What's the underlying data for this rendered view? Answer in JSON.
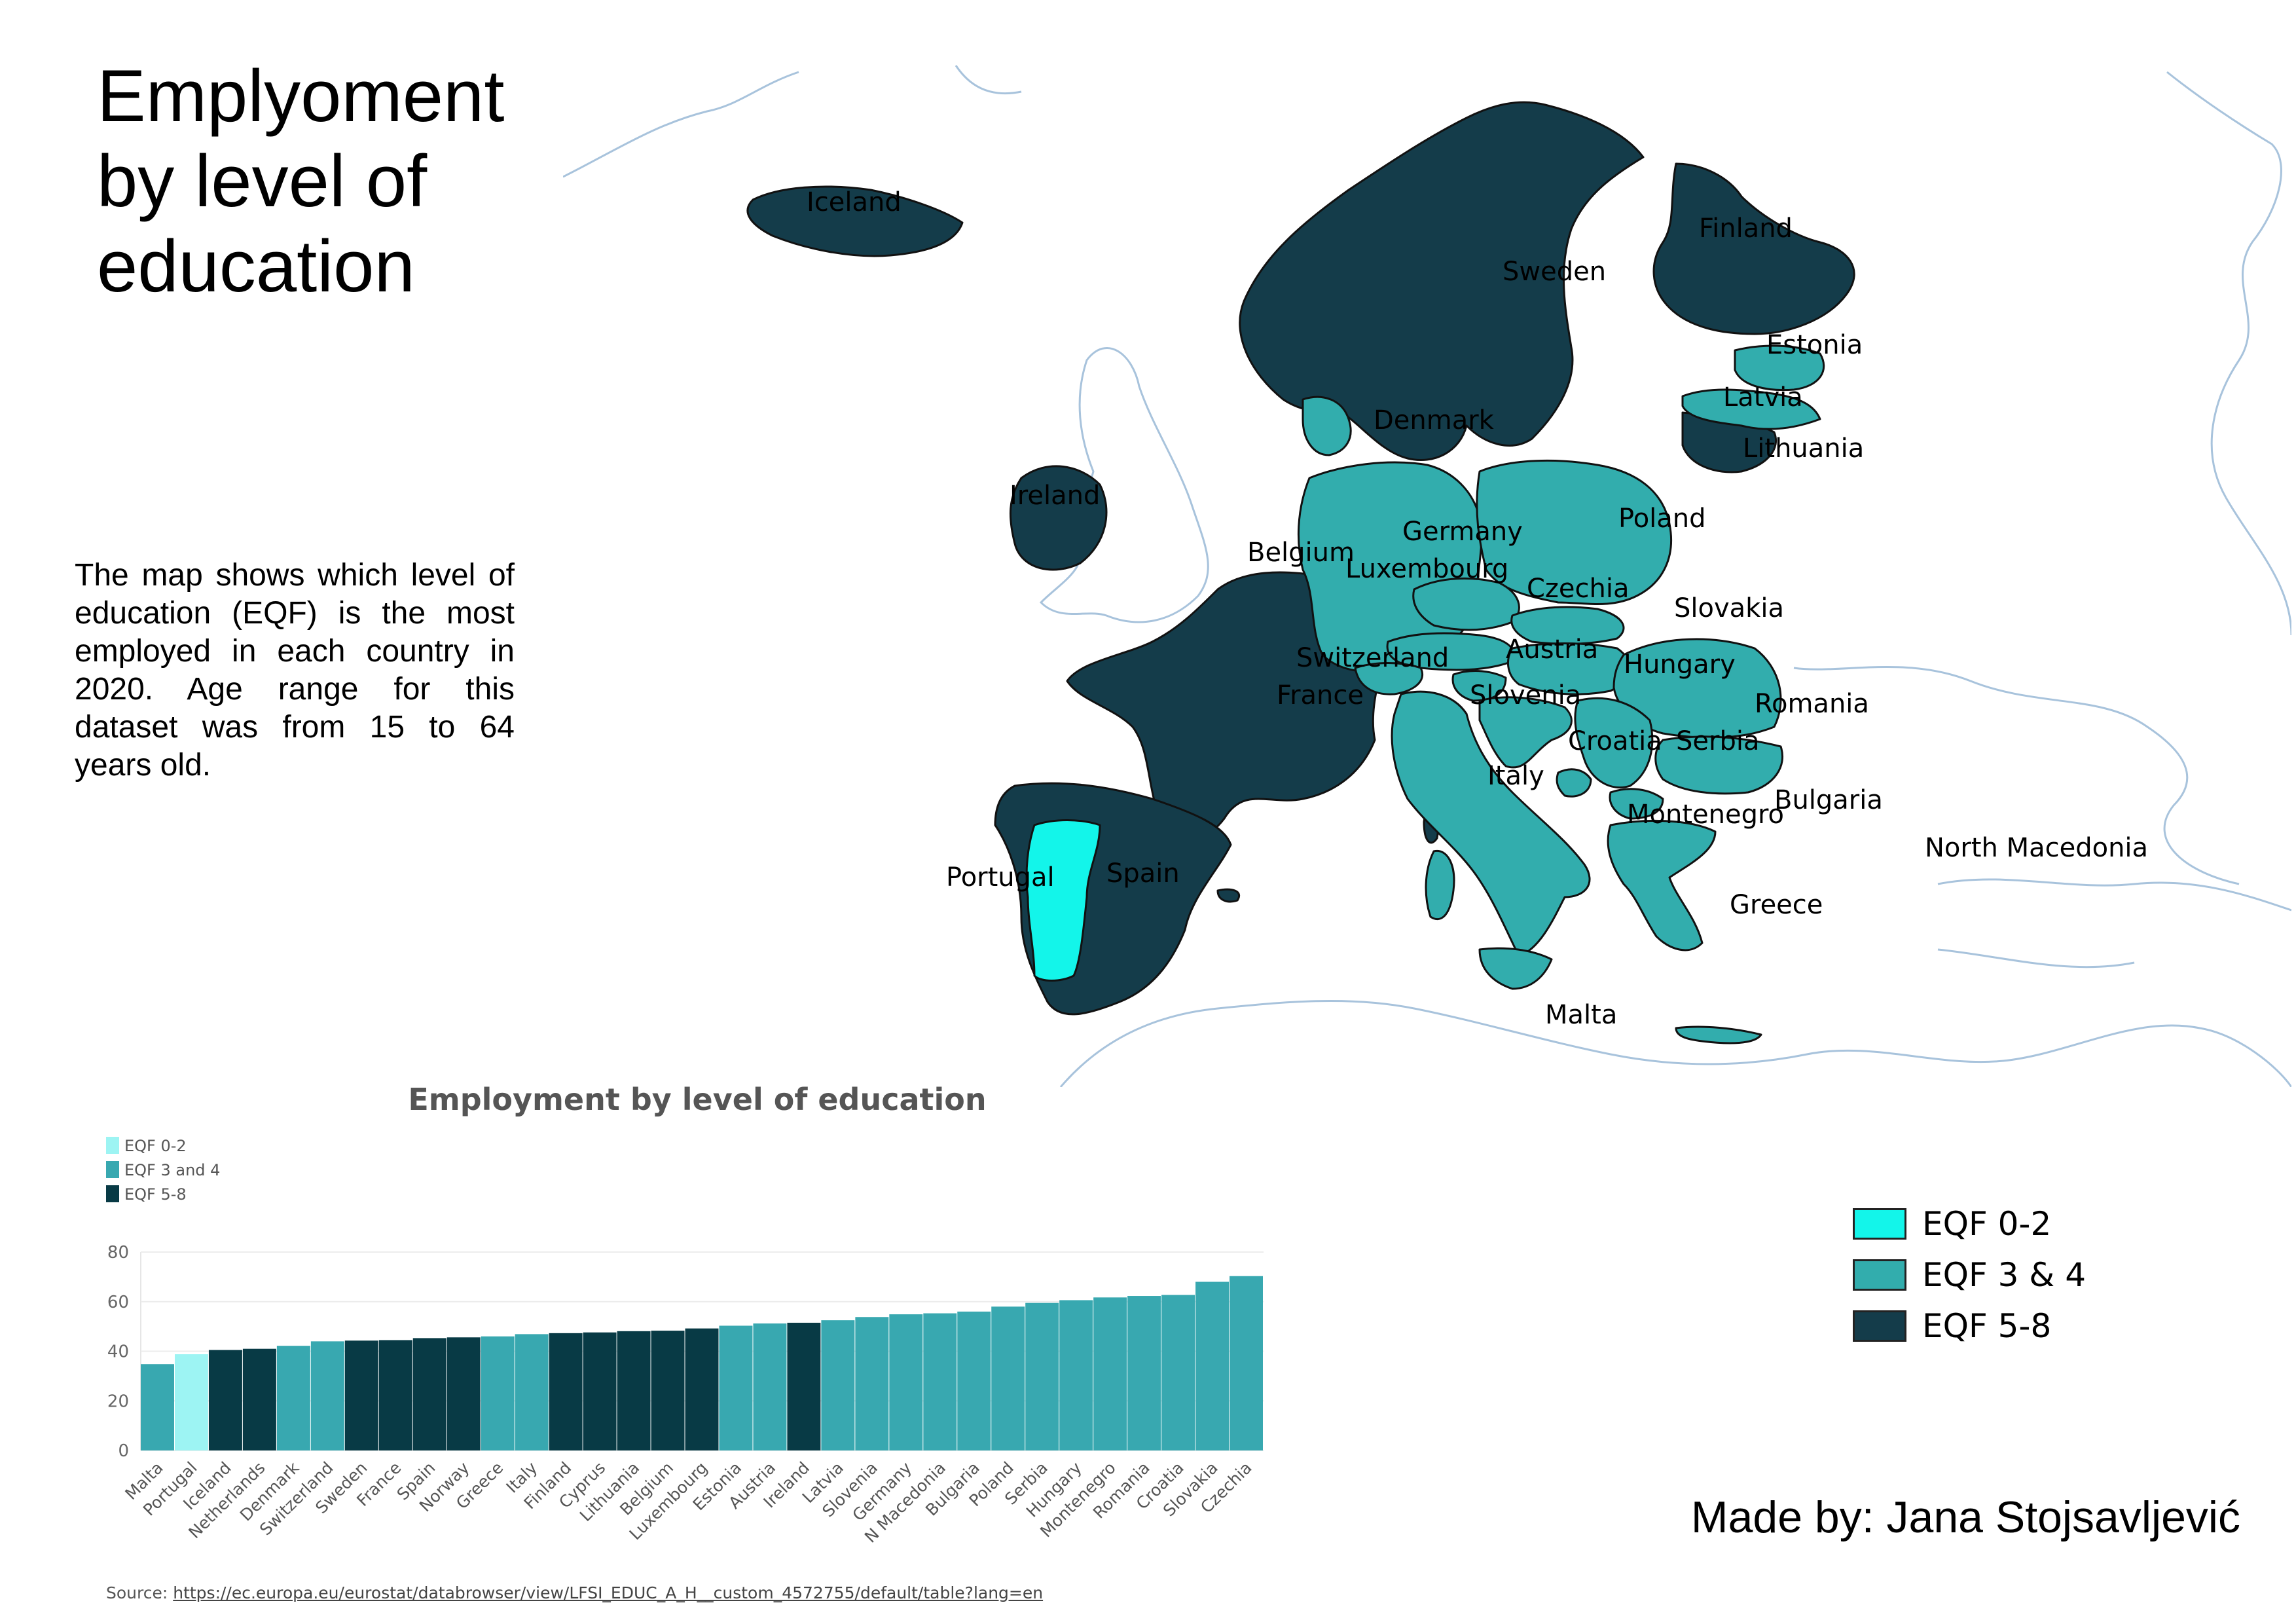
{
  "page": {
    "title": "Emplyoment\nby level of\neducation",
    "description": "The map shows which level of education (EQF) is the most employed in each country in 2020. Age range for this dataset was from 15 to 64 years old.",
    "credit": "Made by: Jana Stojsavljević",
    "source_prefix": "Source: ",
    "source_url": "https://ec.europa.eu/eurostat/databrowser/view/LFSI_EDUC_A_H__custom_4572755/default/table?lang=en"
  },
  "colors": {
    "eqf_0_2_map": "#13f5ea",
    "eqf_3_4": "#32adad",
    "eqf_5_8": "#143c4a",
    "eqf_0_2_chart": "#9df4f3",
    "eqf_3_4_chart": "#38a8b0",
    "eqf_5_8_chart": "#083a45"
  },
  "map_legend": [
    {
      "label": "EQF 0-2",
      "color": "#13f5ea"
    },
    {
      "label": "EQF 3 & 4",
      "color": "#32adad"
    },
    {
      "label": "EQF 5-8",
      "color": "#143c4a"
    }
  ],
  "map_labels": {
    "iceland": "Iceland",
    "finland": "Finland",
    "sweden": "Sweden",
    "estonia": "Estonia",
    "latvia": "Latvia",
    "lithuania": "Lithuania",
    "denmark": "Denmark",
    "ireland": "Ireland",
    "poland": "Poland",
    "germany": "Germany",
    "belgium": "Belgium",
    "luxembourg": "Luxembourg",
    "czechia": "Czechia",
    "slovakia": "Slovakia",
    "austria": "Austria",
    "switzerland": "Switzerland",
    "hungary": "Hungary",
    "france": "France",
    "slovenia": "Slovenia",
    "romania": "Romania",
    "croatia": "Croatia",
    "serbia": "Serbia",
    "italy": "Italy",
    "bulgaria": "Bulgaria",
    "montenegro": "Montenegro",
    "north_macedonia": "North Macedonia",
    "portugal": "Portugal",
    "spain": "Spain",
    "greece": "Greece",
    "malta": "Malta"
  },
  "chart_data": {
    "type": "bar",
    "title": "Employment by level of education",
    "xlabel": "",
    "ylabel": "",
    "ylim": [
      0,
      80
    ],
    "yticks": [
      0,
      20,
      40,
      60,
      80
    ],
    "grid": true,
    "legend_position": "top-left",
    "legend": [
      {
        "label": "EQF 0-2",
        "color": "#9df4f3"
      },
      {
        "label": "EQF 3 and 4",
        "color": "#38a8b0"
      },
      {
        "label": "EQF 5-8",
        "color": "#083a45"
      }
    ],
    "categories": [
      "Malta",
      "Portugal",
      "Iceland",
      "Netherlands",
      "Denmark",
      "Switzerland",
      "Sweden",
      "France",
      "Spain",
      "Norway",
      "Greece",
      "Italy",
      "Finland",
      "Cyprus",
      "Lithuania",
      "Belgium",
      "Luxembourg",
      "Estonia",
      "Austria",
      "Ireland",
      "Latvia",
      "Slovenia",
      "Germany",
      "N Macedonia",
      "Bulgaria",
      "Poland",
      "Serbia",
      "Hungary",
      "Montenegro",
      "Romania",
      "Croatia",
      "Slovakia",
      "Czechia"
    ],
    "values": [
      34.8,
      38.8,
      40.5,
      41.0,
      42.2,
      44.0,
      44.3,
      44.5,
      45.3,
      45.6,
      46.0,
      46.9,
      47.3,
      47.6,
      48.1,
      48.3,
      49.2,
      50.3,
      51.2,
      51.5,
      52.5,
      53.8,
      54.9,
      55.3,
      56.0,
      58.0,
      59.5,
      60.6,
      61.7,
      62.3,
      62.7,
      68.0,
      70.3
    ],
    "levels": [
      "EQF 3 and 4",
      "EQF 0-2",
      "EQF 5-8",
      "EQF 5-8",
      "EQF 3 and 4",
      "EQF 3 and 4",
      "EQF 5-8",
      "EQF 5-8",
      "EQF 5-8",
      "EQF 5-8",
      "EQF 3 and 4",
      "EQF 3 and 4",
      "EQF 5-8",
      "EQF 5-8",
      "EQF 5-8",
      "EQF 5-8",
      "EQF 5-8",
      "EQF 3 and 4",
      "EQF 3 and 4",
      "EQF 5-8",
      "EQF 3 and 4",
      "EQF 3 and 4",
      "EQF 3 and 4",
      "EQF 3 and 4",
      "EQF 3 and 4",
      "EQF 3 and 4",
      "EQF 3 and 4",
      "EQF 3 and 4",
      "EQF 3 and 4",
      "EQF 3 and 4",
      "EQF 3 and 4",
      "EQF 3 and 4",
      "EQF 3 and 4"
    ]
  }
}
